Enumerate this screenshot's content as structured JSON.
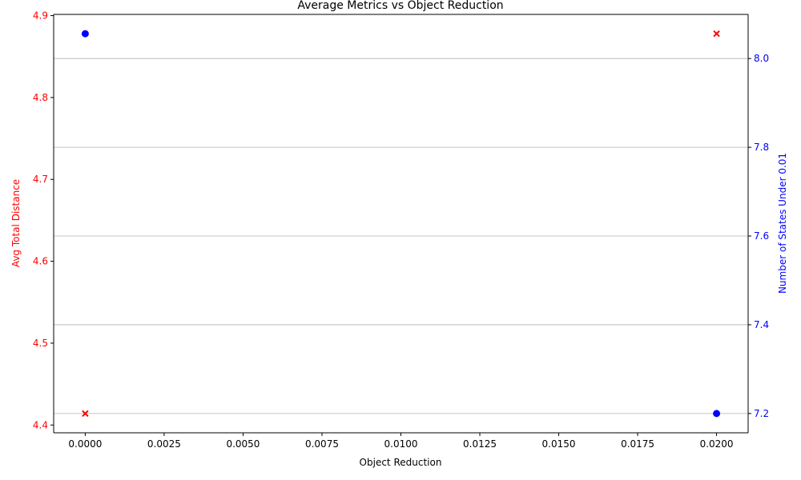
{
  "chart_data": {
    "type": "scatter",
    "title": "Average Metrics vs Object Reduction",
    "xlabel": "Object Reduction",
    "ylabel_left": "Avg Total Distance",
    "ylabel_right": "Number of States Under 0.01",
    "xlim": [
      -0.001,
      0.021
    ],
    "ylim_left": [
      4.3905,
      4.9015
    ],
    "ylim_right": [
      7.1565,
      8.0995
    ],
    "x_ticks": [
      "0.0000",
      "0.0025",
      "0.0050",
      "0.0075",
      "0.0100",
      "0.0125",
      "0.0150",
      "0.0175",
      "0.0200"
    ],
    "y_left_ticks": [
      "4.4",
      "4.5",
      "4.6",
      "4.7",
      "4.8",
      "4.9"
    ],
    "y_right_ticks": [
      "7.2",
      "7.4",
      "7.6",
      "7.8",
      "8.0"
    ],
    "grid": "horizontal, right axis",
    "series": [
      {
        "axis": "left",
        "color": "#ff0000",
        "marker": "x",
        "points": [
          {
            "x": 0.0,
            "y": 4.414
          },
          {
            "x": 0.02,
            "y": 4.878
          }
        ]
      },
      {
        "axis": "right",
        "color": "#0000ff",
        "marker": "o",
        "points": [
          {
            "x": 0.0,
            "y": 8.056
          },
          {
            "x": 0.02,
            "y": 7.2
          }
        ]
      }
    ],
    "colors": {
      "left_axis": "#ff0000",
      "right_axis": "#0000ff"
    }
  }
}
